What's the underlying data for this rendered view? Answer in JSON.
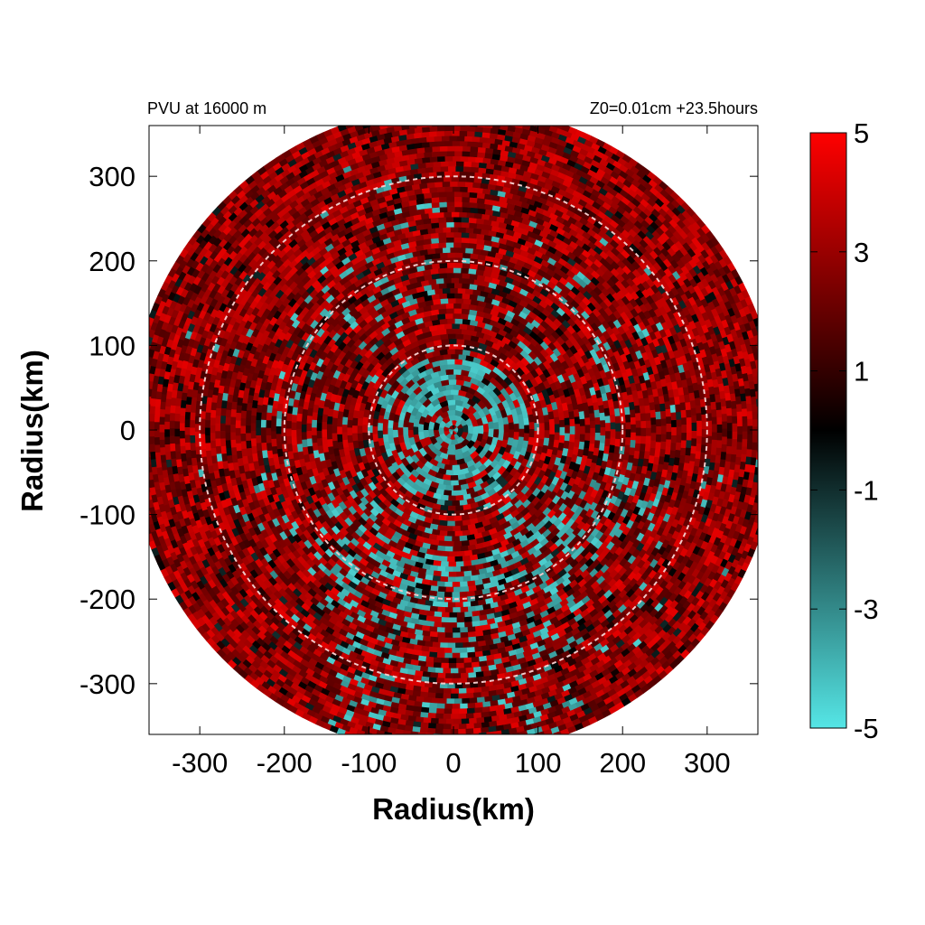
{
  "chart_data": {
    "type": "heatmap",
    "title_left": "PVU at 16000 m",
    "title_right": "Z0=0.01cm  +23.5hours",
    "xlabel": "Radius(km)",
    "ylabel": "Radius(km)",
    "xlim": [
      -360,
      360
    ],
    "ylim": [
      -360,
      360
    ],
    "xticks": [
      -300,
      -200,
      -100,
      0,
      100,
      200,
      300
    ],
    "yticks": [
      -300,
      -200,
      -100,
      0,
      100,
      200,
      300
    ],
    "domain_radius_km": 380,
    "reference_circle_radii_km": [
      100,
      200,
      300
    ],
    "colorbar": {
      "range": [
        -5,
        5
      ],
      "tick_labels": [
        "5",
        "3",
        "1",
        "-1",
        "-3",
        "-5"
      ],
      "tick_values": [
        5,
        3,
        1,
        -1,
        -3,
        -5
      ],
      "colormap": [
        {
          "value": -5,
          "color": "#55e6e6"
        },
        {
          "value": 0,
          "color": "#000000"
        },
        {
          "value": 5,
          "color": "#ff0000"
        }
      ]
    },
    "field_description_values": {
      "core_radius_km": 90,
      "core_typical_value": -4.5,
      "outer_typical_value": 4.5
    },
    "grid": false,
    "legend": "colorbar-right"
  }
}
